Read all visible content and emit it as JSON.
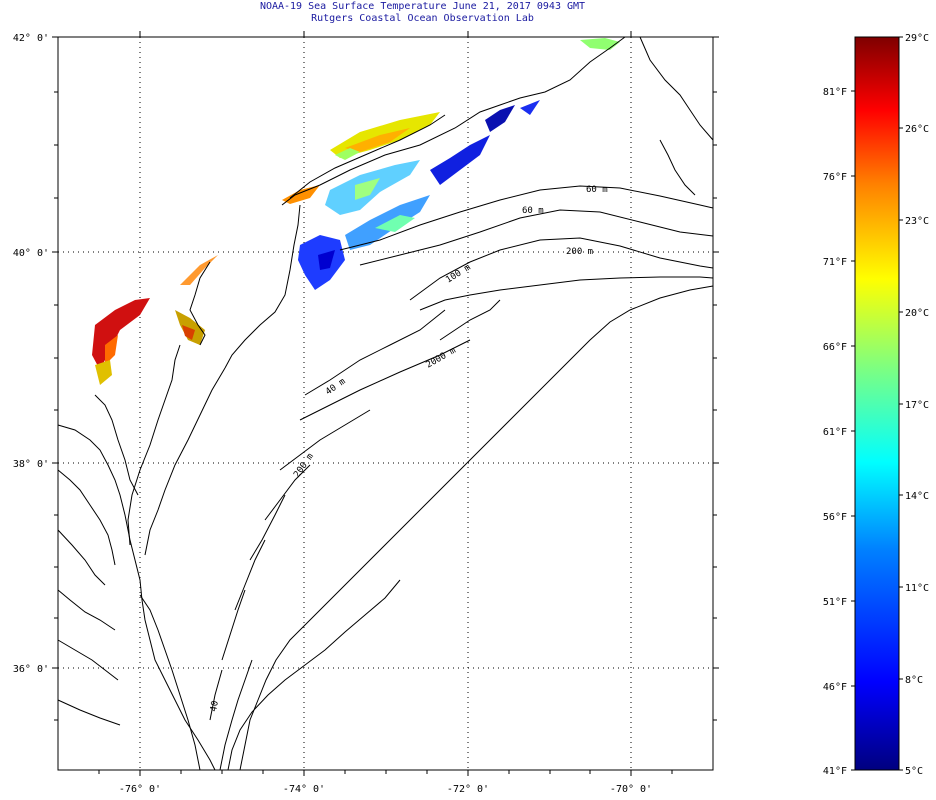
{
  "header": {
    "title": "NOAA-19 Sea Surface Temperature June 21, 2017 0943 GMT",
    "subtitle": "Rutgers Coastal Ocean Observation Lab"
  },
  "map": {
    "lat_labels": [
      "42° 0'",
      "40° 0'",
      "38° 0'",
      "36° 0'"
    ],
    "lon_labels": [
      "-76° 0'",
      "-74° 0'",
      "-72° 0'",
      "-70° 0'"
    ],
    "depth_labels": [
      "60 m",
      "60 m",
      "200 m",
      "100 m",
      "2000 m",
      "40 m",
      "200 m",
      "40"
    ]
  },
  "colorbar": {
    "celsius_labels": [
      "29°C",
      "26°C",
      "23°C",
      "20°C",
      "17°C",
      "14°C",
      "11°C",
      "8°C",
      "5°C"
    ],
    "fahrenheit_labels": [
      "81°F",
      "76°F",
      "71°F",
      "66°F",
      "61°F",
      "56°F",
      "51°F",
      "46°F",
      "41°F"
    ]
  },
  "colors": {
    "title_text": "#1a1aa0",
    "frame": "#000000",
    "coast": "#000000"
  }
}
